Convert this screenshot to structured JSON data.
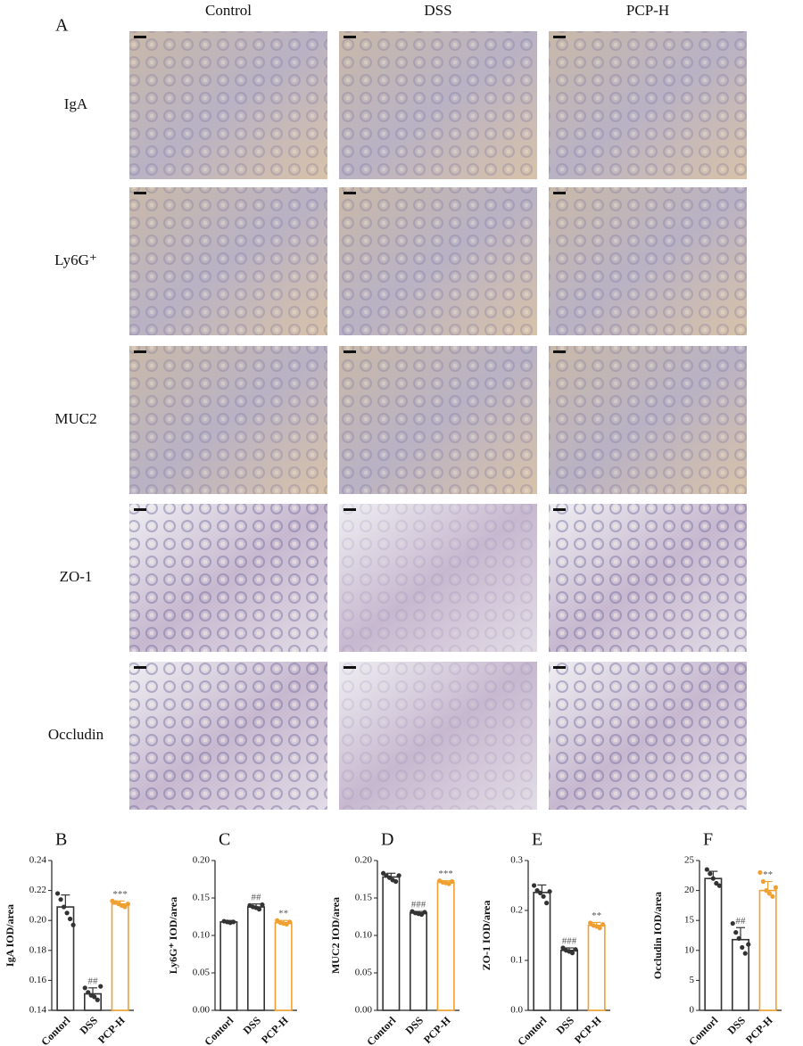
{
  "panel_a": {
    "label": "A",
    "columns": [
      "Control",
      "DSS",
      "PCP-H"
    ],
    "rows": [
      "IgA",
      "Ly6G⁺",
      "MUC2",
      "ZO-1",
      "Occludin"
    ]
  },
  "chart_data": [
    {
      "type": "bar",
      "label": "B",
      "y_label": "IgA IOD/area",
      "categories": [
        "Contorl",
        "DSS",
        "PCP-H"
      ],
      "values": [
        0.209,
        0.151,
        0.211
      ],
      "errors": [
        0.008,
        0.004,
        0.002
      ],
      "annotations": [
        "##",
        "***"
      ],
      "colors": [
        "#333333",
        "#333333",
        "#f0a030"
      ],
      "points": [
        [
          0.218,
          0.214,
          0.209,
          0.205,
          0.201,
          0.197
        ],
        [
          0.155,
          0.152,
          0.15,
          0.149,
          0.147,
          0.156
        ],
        [
          0.213,
          0.212,
          0.211,
          0.21,
          0.209,
          0.211
        ]
      ],
      "ylim": [
        0.14,
        0.24
      ],
      "yticks": [
        0.14,
        0.16,
        0.18,
        {
          "value": 0.2,
          "label": "0.20"
        },
        0.22,
        0.24
      ]
    },
    {
      "type": "bar",
      "label": "C",
      "y_label": "Ly6G⁺ IOD/area",
      "categories": [
        "Contorl",
        "DSS",
        "PCP-H"
      ],
      "values": [
        0.118,
        0.138,
        0.117
      ],
      "errors": [
        0.002,
        0.004,
        0.003
      ],
      "annotations": [
        "##",
        "**"
      ],
      "colors": [
        "#333333",
        "#333333",
        "#f0a030"
      ],
      "points": [
        [
          0.119,
          0.118,
          0.117,
          0.118
        ],
        [
          0.14,
          0.138,
          0.137,
          0.135,
          0.141
        ],
        [
          0.12,
          0.117,
          0.116,
          0.115,
          0.118
        ]
      ],
      "ylim": [
        0,
        0.2
      ],
      "yticks": [
        {
          "value": 0,
          "label": "0.00"
        },
        0.05,
        {
          "value": 0.1,
          "label": "0.10"
        },
        0.15,
        {
          "value": 0.2,
          "label": "0.20"
        }
      ]
    },
    {
      "type": "bar",
      "label": "D",
      "y_label": "MUC2 IOD/area",
      "categories": [
        "Contorl",
        "DSS",
        "PCP-H"
      ],
      "values": [
        0.178,
        0.13,
        0.171
      ],
      "errors": [
        0.005,
        0.002,
        0.002
      ],
      "annotations": [
        "###",
        "***"
      ],
      "colors": [
        "#333333",
        "#333333",
        "#f0a030"
      ],
      "points": [
        [
          0.183,
          0.18,
          0.177,
          0.174,
          0.172,
          0.18
        ],
        [
          0.132,
          0.13,
          0.129,
          0.128,
          0.131
        ],
        [
          0.173,
          0.171,
          0.17,
          0.169,
          0.172
        ]
      ],
      "ylim": [
        0,
        0.2
      ],
      "yticks": [
        {
          "value": 0,
          "label": "0.00"
        },
        0.05,
        {
          "value": 0.1,
          "label": "0.10"
        },
        0.15,
        {
          "value": 0.2,
          "label": "0.20"
        }
      ]
    },
    {
      "type": "bar",
      "label": "E",
      "y_label": "ZO-1 IOD/area",
      "categories": [
        "Contorl",
        "DSS",
        "PCP-H"
      ],
      "values": [
        0.236,
        0.12,
        0.17
      ],
      "errors": [
        0.015,
        0.005,
        0.006
      ],
      "annotations": [
        "###",
        "**"
      ],
      "colors": [
        "#333333",
        "#333333",
        "#f0a030"
      ],
      "points": [
        [
          0.25,
          0.24,
          0.235,
          0.228,
          0.215,
          0.238
        ],
        [
          0.125,
          0.12,
          0.118,
          0.115,
          0.122
        ],
        [
          0.175,
          0.17,
          0.168,
          0.165,
          0.172
        ]
      ],
      "ylim": [
        0,
        0.3
      ],
      "yticks": [
        {
          "value": 0,
          "label": "0.0"
        },
        0.1,
        0.2,
        0.3
      ]
    },
    {
      "type": "bar",
      "label": "F",
      "y_label": "Occludin IOD/area",
      "categories": [
        "Contorl",
        "DSS",
        "PCP-H"
      ],
      "values": [
        22.0,
        11.8,
        20.0
      ],
      "errors": [
        1.2,
        2.0,
        1.5
      ],
      "annotations": [
        "##",
        "**"
      ],
      "colors": [
        "#333333",
        "#333333",
        "#f0a030"
      ],
      "points": [
        [
          23.5,
          22.8,
          22.0,
          21.2,
          20.8
        ],
        [
          14.5,
          13.0,
          12.0,
          10.5,
          9.5,
          11.0
        ],
        [
          23.0,
          21.5,
          20.0,
          19.5,
          19.0,
          20.5
        ]
      ],
      "ylim": [
        0,
        25
      ],
      "yticks": [
        0,
        5,
        10,
        15,
        20,
        25
      ]
    }
  ]
}
